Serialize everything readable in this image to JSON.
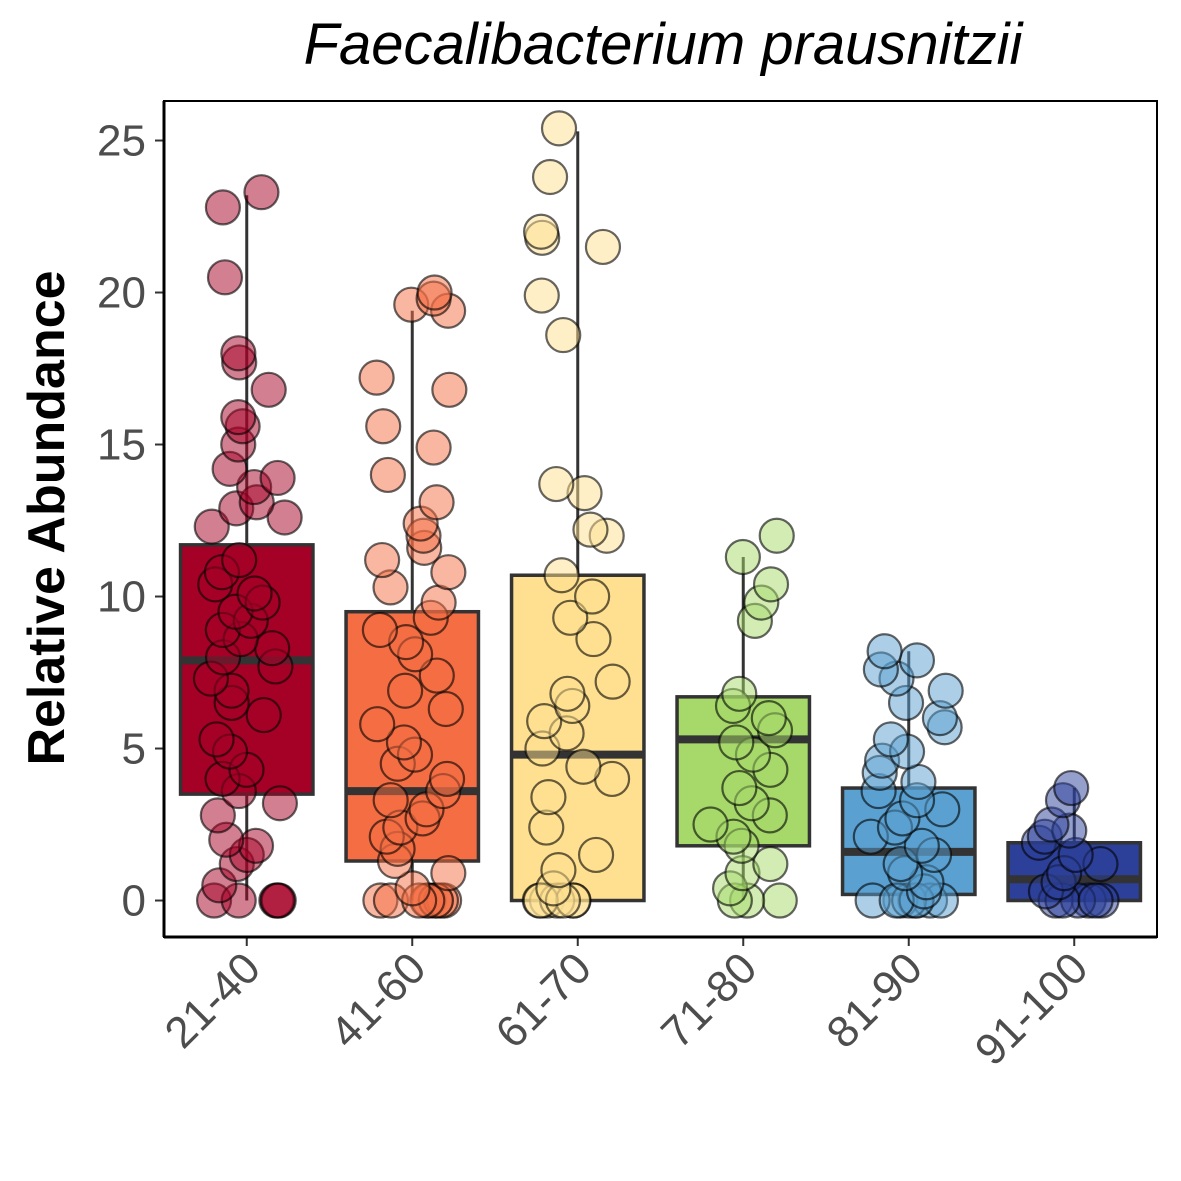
{
  "chart_data": {
    "type": "boxplot",
    "title": "Faecalibacterium prausnitzii",
    "ylabel": "Relative Abundance",
    "xlabel": "",
    "ylim": [
      -1.2,
      26.3
    ],
    "yticks": [
      0,
      5,
      10,
      15,
      20,
      25
    ],
    "grid": false,
    "legend": "none",
    "categories": [
      "21-40",
      "41-60",
      "61-70",
      "71-80",
      "81-90",
      "91-100"
    ],
    "colors": [
      "#a50026",
      "#f46d43",
      "#fee090",
      "#a6d96a",
      "#5aa0d0",
      "#2c3f99"
    ],
    "boxes": [
      {
        "q1": 3.5,
        "median": 7.9,
        "q3": 11.7,
        "whisker_low": 0.0,
        "whisker_high": 23.2
      },
      {
        "q1": 1.3,
        "median": 3.6,
        "q3": 9.5,
        "whisker_low": 0.0,
        "whisker_high": 19.4
      },
      {
        "q1": 0.0,
        "median": 4.8,
        "q3": 10.7,
        "whisker_low": 0.0,
        "whisker_high": 25.3
      },
      {
        "q1": 1.8,
        "median": 5.3,
        "q3": 6.7,
        "whisker_low": 0.0,
        "whisker_high": 11.3
      },
      {
        "q1": 0.2,
        "median": 1.6,
        "q3": 3.7,
        "whisker_low": 0.0,
        "whisker_high": 8.2
      },
      {
        "q1": 0.0,
        "median": 0.7,
        "q3": 1.9,
        "whisker_low": 0.0,
        "whisker_high": 3.7
      }
    ],
    "points": [
      [
        0,
        0,
        0,
        0,
        0,
        0.5,
        1.2,
        1.5,
        1.8,
        2.0,
        2.8,
        3.2,
        3.6,
        4.0,
        4.3,
        4.9,
        5.3,
        6.1,
        6.5,
        6.9,
        7.3,
        7.7,
        8.0,
        8.3,
        8.6,
        8.9,
        9.2,
        9.5,
        9.8,
        10.1,
        10.4,
        10.8,
        11.2,
        12.3,
        12.6,
        12.9,
        13.1,
        13.6,
        13.9,
        14.2,
        15.0,
        15.6,
        15.9,
        16.8,
        17.7,
        18.0,
        20.5,
        22.8,
        23.3
      ],
      [
        0,
        0,
        0,
        0,
        0,
        0,
        0,
        0,
        0,
        0.4,
        0.9,
        1.3,
        1.7,
        2.1,
        2.4,
        2.7,
        3.0,
        3.3,
        3.6,
        4.0,
        4.5,
        4.8,
        5.2,
        5.8,
        6.3,
        6.9,
        7.4,
        8.1,
        8.5,
        8.9,
        9.3,
        9.8,
        10.3,
        10.8,
        11.2,
        11.6,
        12.0,
        12.4,
        13.1,
        14.0,
        14.9,
        15.6,
        16.8,
        17.2,
        19.4,
        19.6,
        19.8,
        20.0
      ],
      [
        0,
        0,
        0,
        0,
        0,
        0,
        0,
        0.4,
        1.0,
        1.5,
        2.4,
        3.4,
        4.0,
        4.4,
        5.0,
        5.5,
        5.9,
        6.4,
        6.8,
        7.2,
        8.6,
        9.3,
        10.0,
        10.7,
        12.0,
        12.2,
        13.4,
        13.7,
        18.6,
        19.9,
        21.5,
        21.8,
        22.0,
        23.8,
        25.4
      ],
      [
        0,
        0,
        0,
        0.4,
        0.9,
        1.2,
        1.8,
        2.1,
        2.5,
        2.8,
        3.2,
        3.7,
        4.3,
        4.8,
        5.2,
        5.6,
        6.0,
        6.4,
        6.8,
        9.2,
        9.8,
        10.4,
        11.3,
        12.0
      ],
      [
        0,
        0,
        0,
        0,
        0,
        0,
        0,
        0,
        0.3,
        0.6,
        0.9,
        1.2,
        1.5,
        1.8,
        2.1,
        2.4,
        2.7,
        3.0,
        3.3,
        3.6,
        3.9,
        4.2,
        4.6,
        4.9,
        5.3,
        5.7,
        6.0,
        6.5,
        6.9,
        7.3,
        7.6,
        7.9,
        8.2
      ],
      [
        0,
        0,
        0,
        0,
        0,
        0,
        0.3,
        0.6,
        0.9,
        1.2,
        1.5,
        1.9,
        2.1,
        2.3,
        2.5,
        3.3,
        3.7
      ]
    ]
  }
}
